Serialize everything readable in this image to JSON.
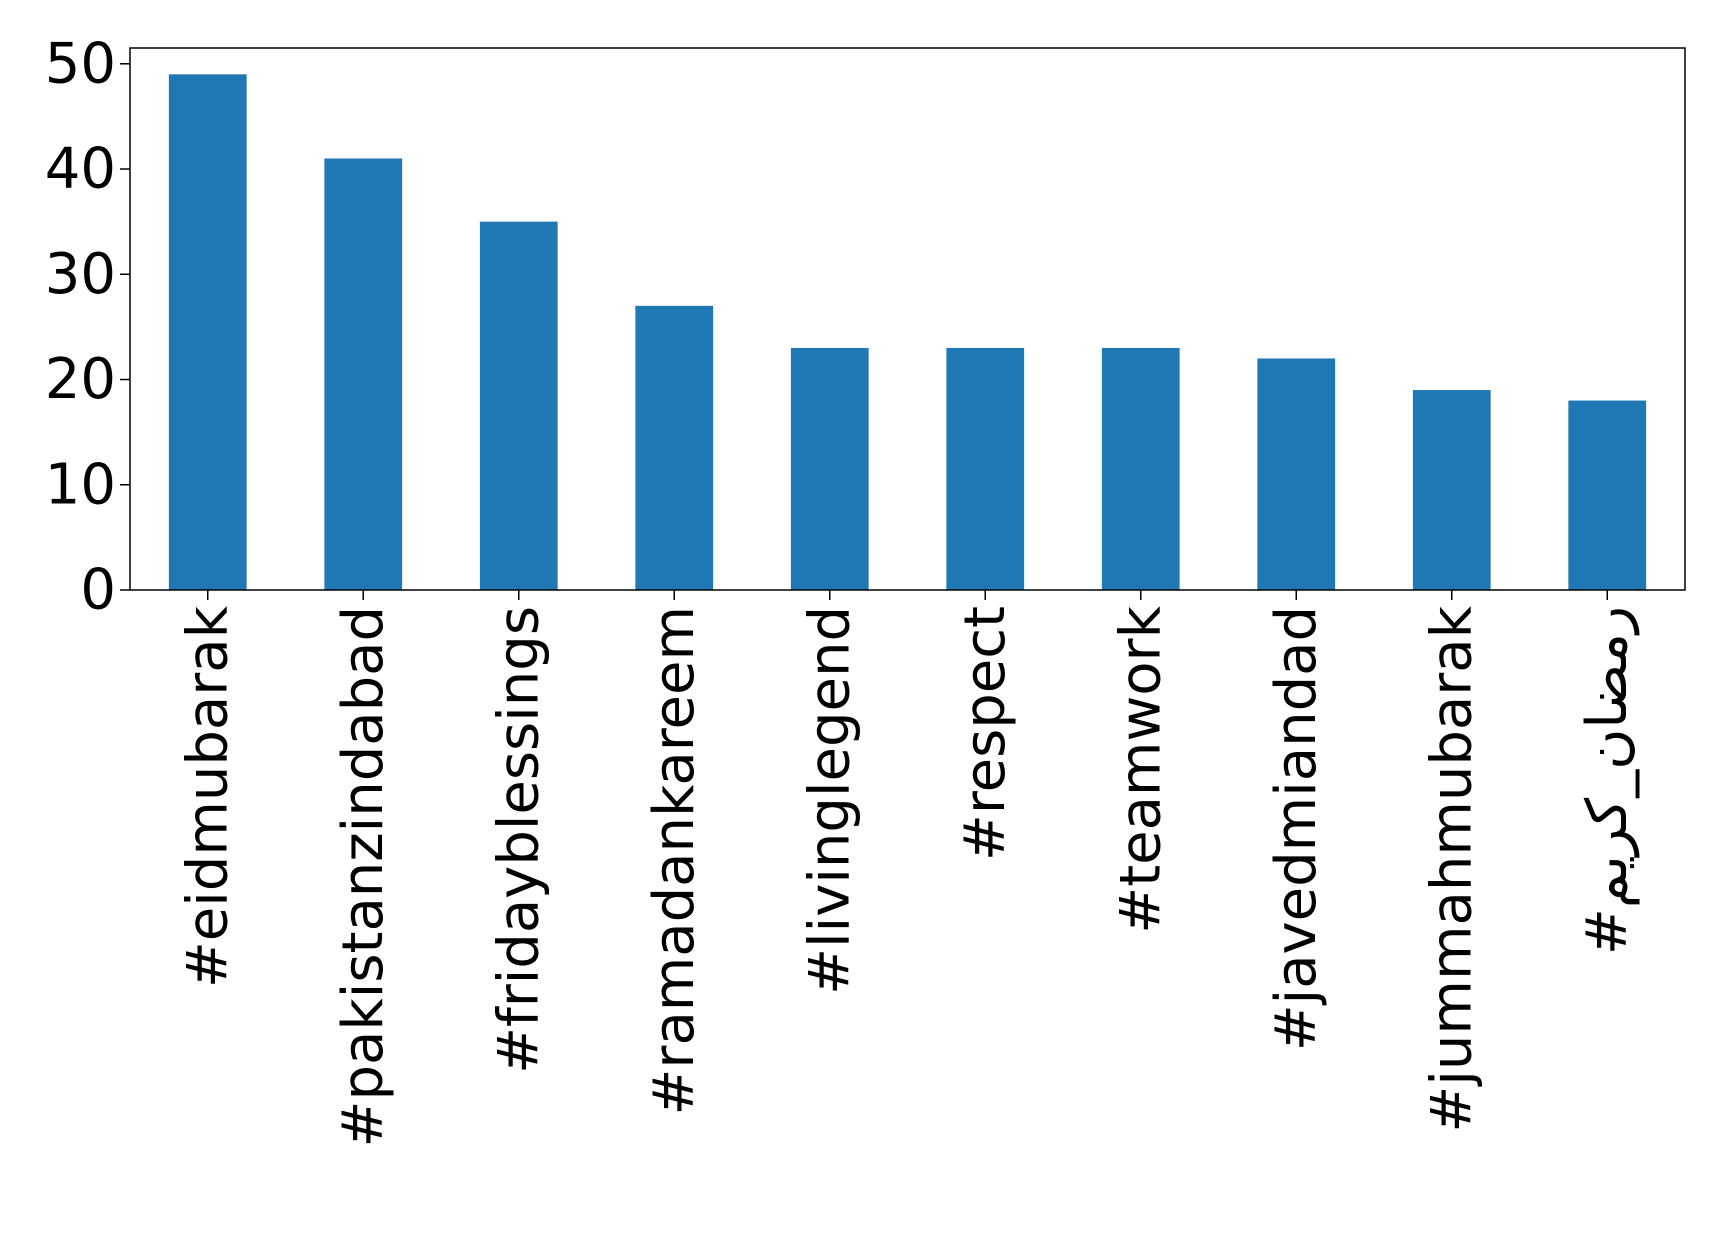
{
  "chart_data": {
    "type": "bar",
    "title": "",
    "xlabel": "",
    "ylabel": "",
    "categories": [
      "#eidmubarak",
      "#pakistanzindabad",
      "#fridayblessings",
      "#ramadankareem",
      "#livinglegend",
      "#respect",
      "#teamwork",
      "#javedmiandad",
      "#jummahmubarak",
      "#رمضان_کریم"
    ],
    "values": [
      49,
      41,
      35,
      27,
      23,
      23,
      23,
      22,
      19,
      18
    ],
    "ylim": [
      0,
      51.5
    ],
    "yticks": [
      0,
      10,
      20,
      30,
      40,
      50
    ],
    "grid": false,
    "legend": "none",
    "bar_color": "#1f77b4"
  }
}
